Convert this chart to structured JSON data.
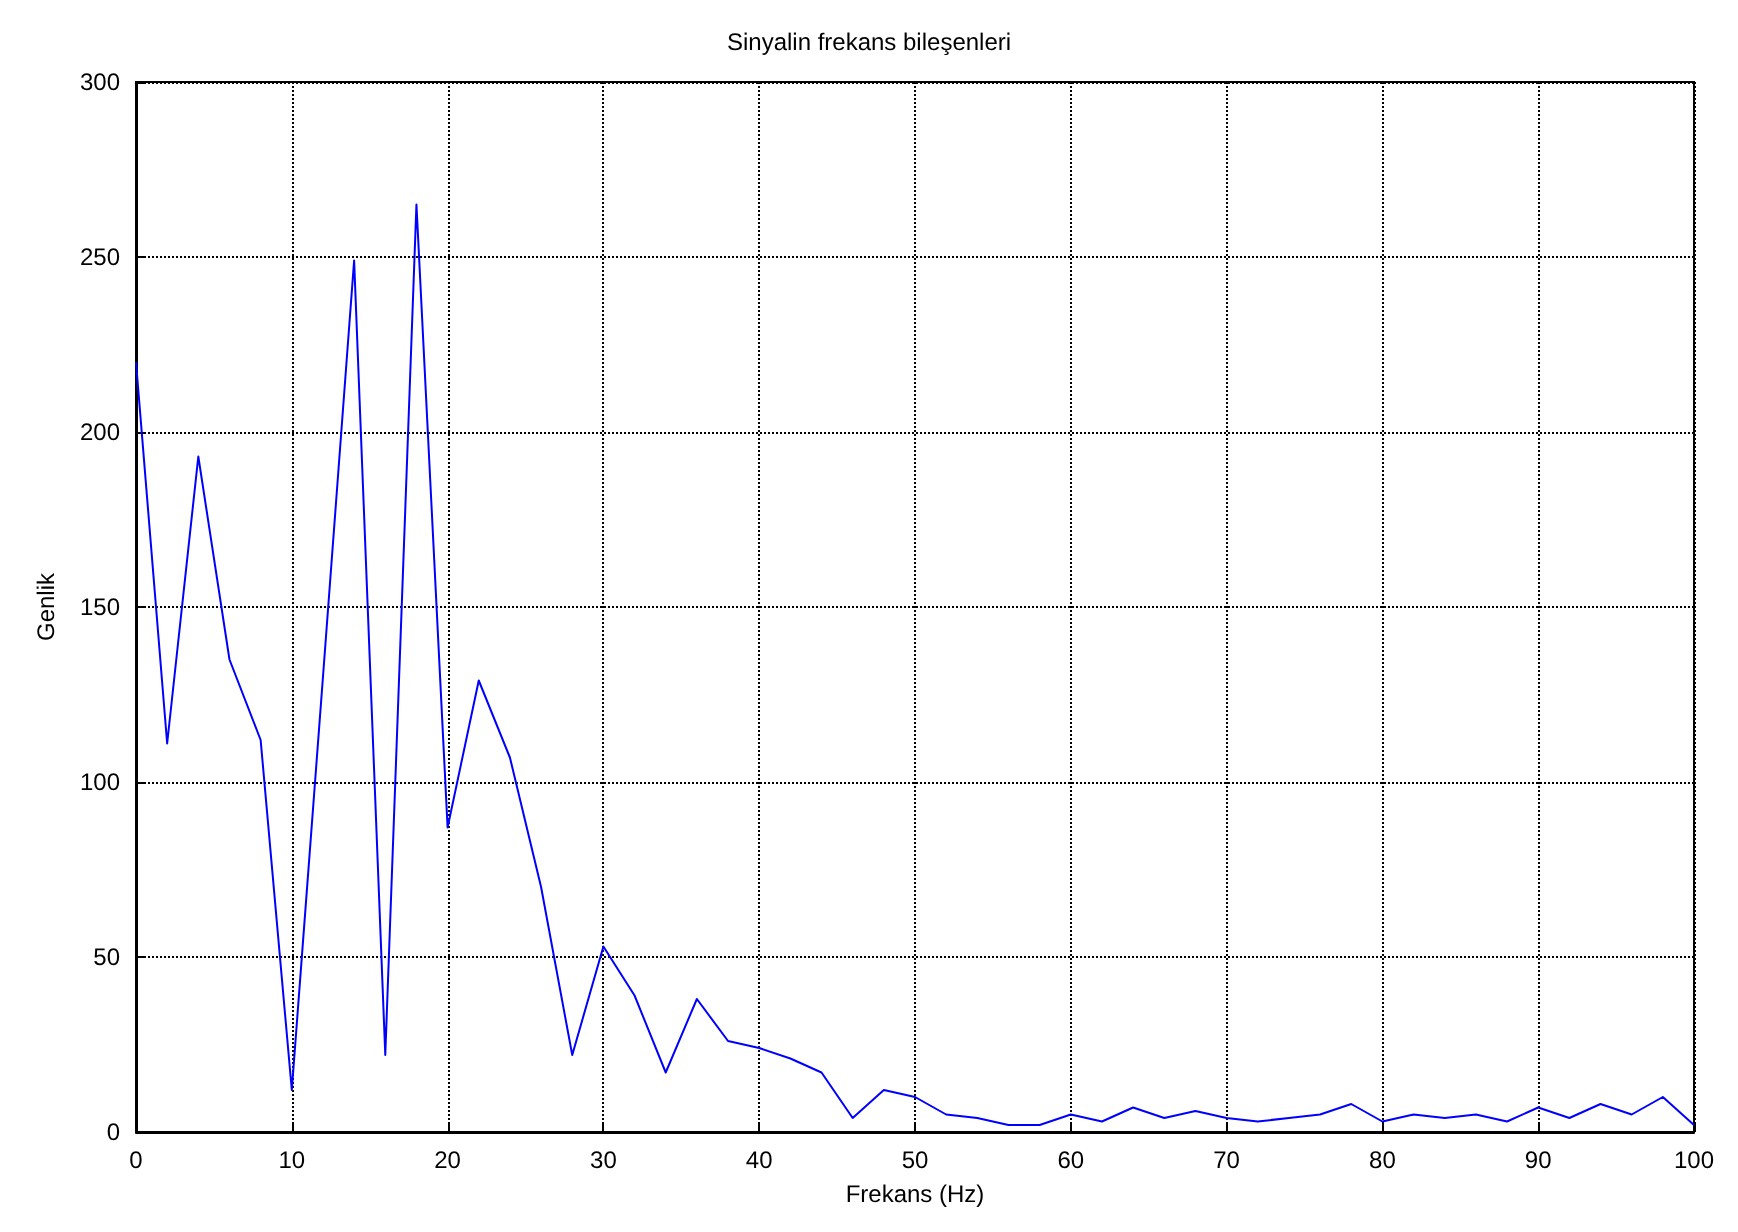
{
  "chart_data": {
    "type": "line",
    "title": "Sinyalin frekans bileşenleri",
    "xlabel": "Frekans (Hz)",
    "ylabel": "Genlik",
    "x": [
      0,
      2,
      4,
      6,
      8,
      10,
      12,
      14,
      16,
      18,
      20,
      22,
      24,
      26,
      28,
      30,
      32,
      34,
      36,
      38,
      40,
      42,
      44,
      46,
      48,
      50,
      52,
      54,
      56,
      58,
      60,
      62,
      64,
      66,
      68,
      70,
      72,
      74,
      76,
      78,
      80,
      82,
      84,
      86,
      88,
      90,
      92,
      94,
      96,
      98,
      100
    ],
    "series": [
      {
        "color": "#0000ff",
        "values": [
          220,
          111,
          193,
          135,
          112,
          12,
          130,
          249,
          22,
          265,
          87,
          129,
          107,
          70,
          22,
          53,
          39,
          17,
          38,
          26,
          24,
          21,
          17,
          4,
          12,
          10,
          5,
          4,
          2,
          2,
          5,
          3,
          7,
          4,
          6,
          4,
          3,
          4,
          5,
          8,
          3,
          5,
          4,
          5,
          3,
          7,
          4,
          8,
          5,
          10,
          2
        ]
      }
    ],
    "xlim": [
      0,
      100
    ],
    "xticks": [
      0,
      10,
      20,
      30,
      40,
      50,
      60,
      70,
      80,
      90,
      100
    ],
    "ylim": [
      0,
      300
    ],
    "yticks": [
      0,
      50,
      100,
      150,
      200,
      250,
      300
    ],
    "grid": true,
    "line_style": "solid",
    "marker": "none"
  }
}
